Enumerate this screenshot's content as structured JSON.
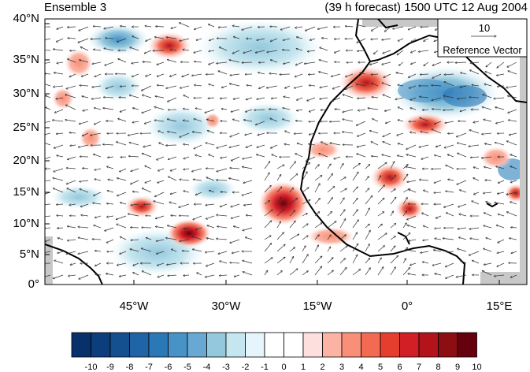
{
  "titles": {
    "left": "Ensemble 3",
    "right": "(39 h forecast) 1500 UTC 12 Aug 2004"
  },
  "lat_labels": [
    "40°N",
    "35°N",
    "30°N",
    "25°N",
    "20°N",
    "15°N",
    "10°N",
    "5°N",
    "0°"
  ],
  "lon_labels": [
    "45°W",
    "30°W",
    "15°W",
    "0°",
    "15°E"
  ],
  "reference_vector": {
    "magnitude": "10",
    "label": "Reference Vector"
  },
  "colorbar": {
    "labels": [
      "-10",
      "-9",
      "-8",
      "-7",
      "-6",
      "-5",
      "-4",
      "-3",
      "-2",
      "-1",
      "0",
      "1",
      "2",
      "3",
      "4",
      "5",
      "6",
      "7",
      "8",
      "9",
      "10"
    ],
    "colors": [
      "#08306b",
      "#0c3d7d",
      "#14508f",
      "#1f64a6",
      "#2b78b8",
      "#4792c6",
      "#69a8d2",
      "#94c8dd",
      "#c6e6ef",
      "#e6f5fb",
      "#ffffff",
      "#ffffff",
      "#fde0dd",
      "#fbb4a4",
      "#f88f78",
      "#f26a52",
      "#e63e2e",
      "#d21f26",
      "#b3141c",
      "#8c0d12",
      "#67000d"
    ]
  },
  "colors": {
    "land": "#c8c8c8",
    "coast": "#000000",
    "wind_arrow": "#333333"
  }
}
